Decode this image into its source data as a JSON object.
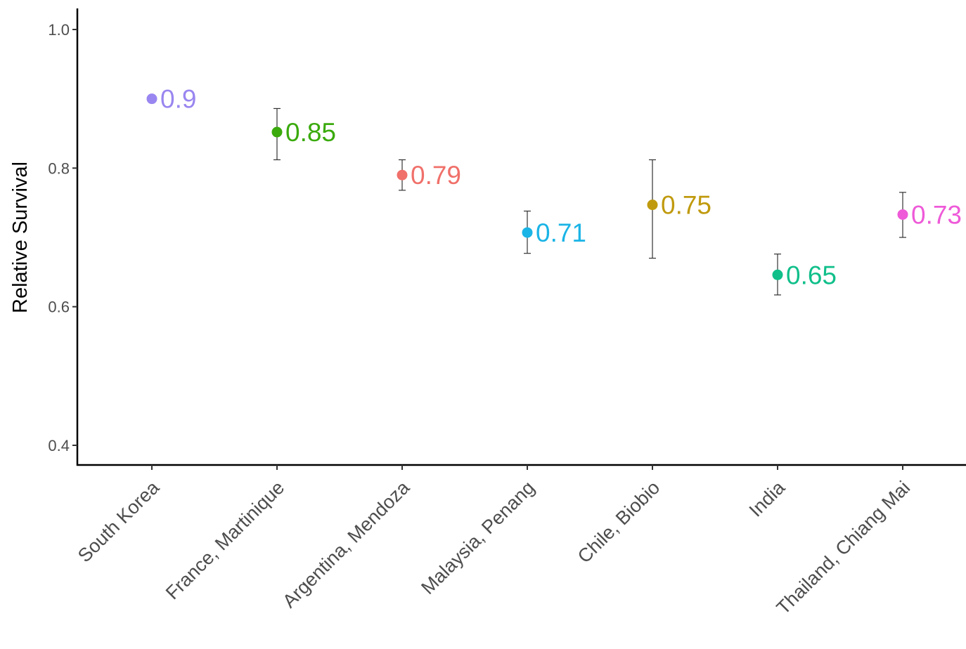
{
  "chart_data": {
    "type": "scatter",
    "title": "",
    "xlabel": "",
    "ylabel": "Relative Survival",
    "ylim": [
      0.37,
      1.03
    ],
    "yticks": [
      0.4,
      0.6,
      0.8,
      1.0
    ],
    "ytick_labels": [
      "0.4",
      "0.6",
      "0.8",
      "1.0"
    ],
    "grid": false,
    "legend": "none",
    "categories": [
      "South Korea",
      "France, Martinique",
      "Argentina, Mendoza",
      "Malaysia, Penang",
      "Chile, Biobio",
      "India",
      "Thailand, Chiang Mai"
    ],
    "values": [
      0.9,
      0.852,
      0.79,
      0.707,
      0.747,
      0.646,
      0.733
    ],
    "lower": [
      0.898,
      0.812,
      0.768,
      0.677,
      0.67,
      0.617,
      0.7
    ],
    "upper": [
      0.905,
      0.886,
      0.812,
      0.738,
      0.812,
      0.676,
      0.765
    ],
    "labels": [
      "0.9",
      "0.85",
      "0.79",
      "0.71",
      "0.75",
      "0.65",
      "0.73"
    ],
    "colors": [
      "#9a86f0",
      "#3aaa0c",
      "#f0706a",
      "#1ab4e6",
      "#c09a0e",
      "#10bf8a",
      "#ee5ad8"
    ]
  }
}
